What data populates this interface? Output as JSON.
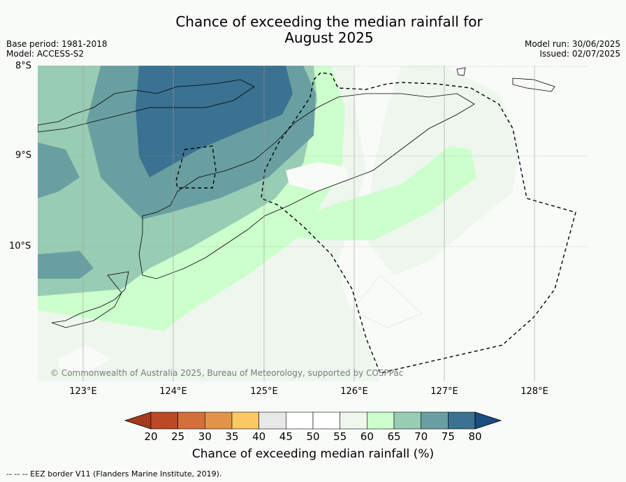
{
  "title_line1": "Chance of exceeding the median rainfall for",
  "title_line2": "August 2025",
  "meta_left": [
    "Base period: 1981-2018",
    "Model: ACCESS-S2"
  ],
  "meta_right": [
    "Model run: 30/06/2025",
    "Issued: 02/07/2025"
  ],
  "lat_labels": [
    "8°S",
    "9°S",
    "10°S"
  ],
  "lon_labels": [
    "123°E",
    "124°E",
    "125°E",
    "126°E",
    "127°E",
    "128°E"
  ],
  "copyright": "© Commonwealth of Australia 2025, Bureau of Meteorology, supported by COSPPac",
  "colorbar": {
    "ticks": [
      "20",
      "25",
      "30",
      "35",
      "40",
      "45",
      "50",
      "55",
      "60",
      "65",
      "70",
      "75",
      "80"
    ],
    "colors": [
      "#a23a1e",
      "#b84a26",
      "#d36f38",
      "#e3944a",
      "#fbc865",
      "#e8e8e8",
      "#ffffff",
      "#ffffff",
      "#eef6ee",
      "#ccffcc",
      "#99ccb4",
      "#6a9fa2",
      "#3b7191",
      "#1a4d80"
    ],
    "label": "Chance of exceeding median rainfall (%)"
  },
  "footnote": "--  --  -- EEZ border V11 (Flanders Marine Institute, 2019)."
}
